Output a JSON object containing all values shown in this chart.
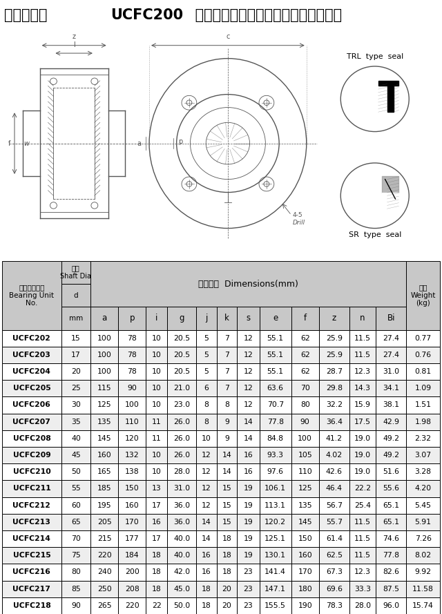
{
  "title_parts": [
    {
      "text": "凸台圆形座 ",
      "bold": false
    },
    {
      "text": "UCFC200",
      "bold": true
    },
    {
      "text": " 系列轴承规格、性能、型号对照参数表",
      "bold": false
    }
  ],
  "header_col0_lines": [
    "带座轴承型号",
    "Bearing Unit",
    "No."
  ],
  "header_col1_lines": [
    "轴径",
    "Shaft Dia",
    "d",
    "mm"
  ],
  "header_mid_label": "外型尺寸  Dimensions(mm)",
  "header_mid_subs": [
    "a",
    "p",
    "i",
    "g",
    "j",
    "k",
    "s",
    "e",
    "f",
    "z",
    "n",
    "Bi"
  ],
  "header_last_lines": [
    "重量",
    "Weight",
    "(kg)"
  ],
  "data": [
    [
      "UCFC202",
      "15",
      "100",
      "78",
      "10",
      "20.5",
      "5",
      "7",
      "12",
      "55.1",
      "62",
      "25.9",
      "11.5",
      "27.4",
      "0.77"
    ],
    [
      "UCFC203",
      "17",
      "100",
      "78",
      "10",
      "20.5",
      "5",
      "7",
      "12",
      "55.1",
      "62",
      "25.9",
      "11.5",
      "27.4",
      "0.76"
    ],
    [
      "UCFC204",
      "20",
      "100",
      "78",
      "10",
      "20.5",
      "5",
      "7",
      "12",
      "55.1",
      "62",
      "28.7",
      "12.3",
      "31.0",
      "0.81"
    ],
    [
      "UCFC205",
      "25",
      "115",
      "90",
      "10",
      "21.0",
      "6",
      "7",
      "12",
      "63.6",
      "70",
      "29.8",
      "14.3",
      "34.1",
      "1.09"
    ],
    [
      "UCFC206",
      "30",
      "125",
      "100",
      "10",
      "23.0",
      "8",
      "8",
      "12",
      "70.7",
      "80",
      "32.2",
      "15.9",
      "38.1",
      "1.51"
    ],
    [
      "UCFC207",
      "35",
      "135",
      "110",
      "11",
      "26.0",
      "8",
      "9",
      "14",
      "77.8",
      "90",
      "36.4",
      "17.5",
      "42.9",
      "1.98"
    ],
    [
      "UCFC208",
      "40",
      "145",
      "120",
      "11",
      "26.0",
      "10",
      "9",
      "14",
      "84.8",
      "100",
      "41.2",
      "19.0",
      "49.2",
      "2.32"
    ],
    [
      "UCFC209",
      "45",
      "160",
      "132",
      "10",
      "26.0",
      "12",
      "14",
      "16",
      "93.3",
      "105",
      "4.02",
      "19.0",
      "49.2",
      "3.07"
    ],
    [
      "UCFC210",
      "50",
      "165",
      "138",
      "10",
      "28.0",
      "12",
      "14",
      "16",
      "97.6",
      "110",
      "42.6",
      "19.0",
      "51.6",
      "3.28"
    ],
    [
      "UCFC211",
      "55",
      "185",
      "150",
      "13",
      "31.0",
      "12",
      "15",
      "19",
      "106.1",
      "125",
      "46.4",
      "22.2",
      "55.6",
      "4.20"
    ],
    [
      "UCFC212",
      "60",
      "195",
      "160",
      "17",
      "36.0",
      "12",
      "15",
      "19",
      "113.1",
      "135",
      "56.7",
      "25.4",
      "65.1",
      "5.45"
    ],
    [
      "UCFC213",
      "65",
      "205",
      "170",
      "16",
      "36.0",
      "14",
      "15",
      "19",
      "120.2",
      "145",
      "55.7",
      "11.5",
      "65.1",
      "5.91"
    ],
    [
      "UCFC214",
      "70",
      "215",
      "177",
      "17",
      "40.0",
      "14",
      "18",
      "19",
      "125.1",
      "150",
      "61.4",
      "11.5",
      "74.6",
      "7.26"
    ],
    [
      "UCFC215",
      "75",
      "220",
      "184",
      "18",
      "40.0",
      "16",
      "18",
      "19",
      "130.1",
      "160",
      "62.5",
      "11.5",
      "77.8",
      "8.02"
    ],
    [
      "UCFC216",
      "80",
      "240",
      "200",
      "18",
      "42.0",
      "16",
      "18",
      "23",
      "141.4",
      "170",
      "67.3",
      "12.3",
      "82.6",
      "9.92"
    ],
    [
      "UCFC217",
      "85",
      "250",
      "208",
      "18",
      "45.0",
      "18",
      "20",
      "23",
      "147.1",
      "180",
      "69.6",
      "33.3",
      "87.5",
      "11.58"
    ],
    [
      "UCFC218",
      "90",
      "265",
      "220",
      "22",
      "50.0",
      "18",
      "20",
      "23",
      "155.5",
      "190",
      "78.3",
      "28.0",
      "96.0",
      "15.74"
    ]
  ],
  "col_widths": [
    1.45,
    0.72,
    0.68,
    0.68,
    0.52,
    0.72,
    0.5,
    0.5,
    0.55,
    0.78,
    0.68,
    0.75,
    0.65,
    0.75,
    0.82
  ],
  "header_bg": "#c8c8c8",
  "row_bg_odd": "#ffffff",
  "row_bg_even": "#eeeeee",
  "border_color": "#000000",
  "title_fontsize": 15,
  "header_fontsize": 7.5,
  "data_fontsize": 7.8,
  "sub_header_fontsize": 8.5,
  "diagram_bg": "#f0f0f0"
}
